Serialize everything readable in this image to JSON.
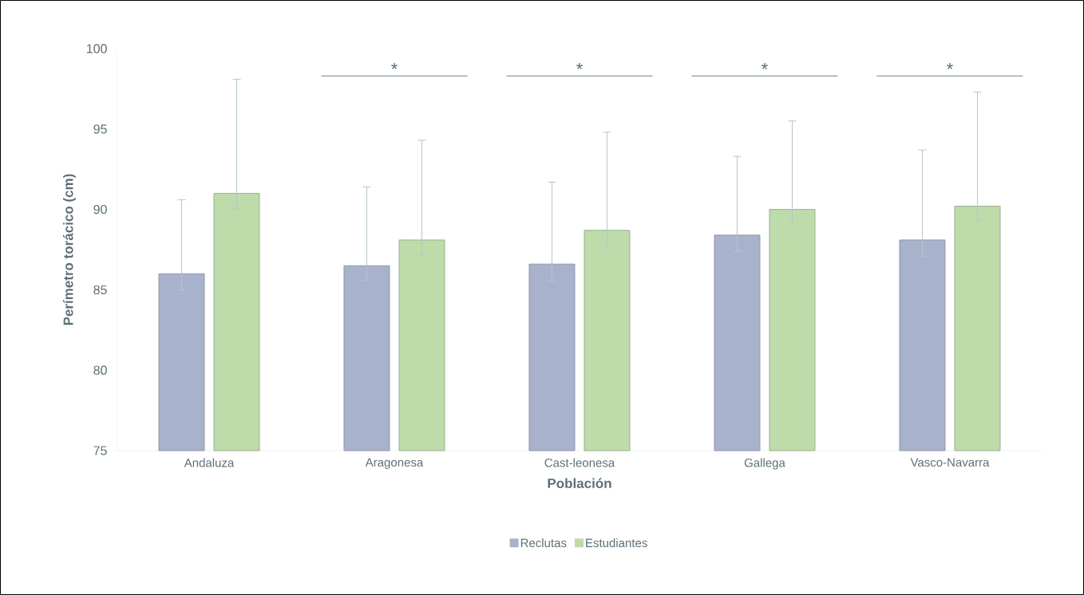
{
  "chart_data": {
    "type": "bar",
    "xlabel": "Población",
    "ylabel": "Perímetro torácico (cm)",
    "categories": [
      "Andaluza",
      "Aragonesa",
      "Cast-leonesa",
      "Gallega",
      "Vasco-Navarra"
    ],
    "series": [
      {
        "name": "Reclutas",
        "color": "#a9b2cc",
        "values": [
          86.0,
          86.5,
          86.6,
          88.4,
          88.1
        ],
        "errors": [
          [
            85.0,
            90.6
          ],
          [
            85.6,
            91.4
          ],
          [
            85.6,
            91.7
          ],
          [
            87.4,
            93.3
          ],
          [
            87.1,
            93.7
          ]
        ]
      },
      {
        "name": "Estudiantes",
        "color": "#bddcaa",
        "values": [
          91.0,
          88.1,
          88.7,
          90.0,
          90.2
        ],
        "errors": [
          [
            90.0,
            98.1
          ],
          [
            87.2,
            94.3
          ],
          [
            87.7,
            94.8
          ],
          [
            89.1,
            95.5
          ],
          [
            89.3,
            97.3
          ]
        ]
      }
    ],
    "ylim": [
      75,
      100
    ],
    "yticks": [
      75,
      80,
      85,
      90,
      95,
      100
    ],
    "grid": false,
    "legend": "bottom",
    "annotations": [
      "*",
      "*",
      "*",
      "*"
    ]
  }
}
